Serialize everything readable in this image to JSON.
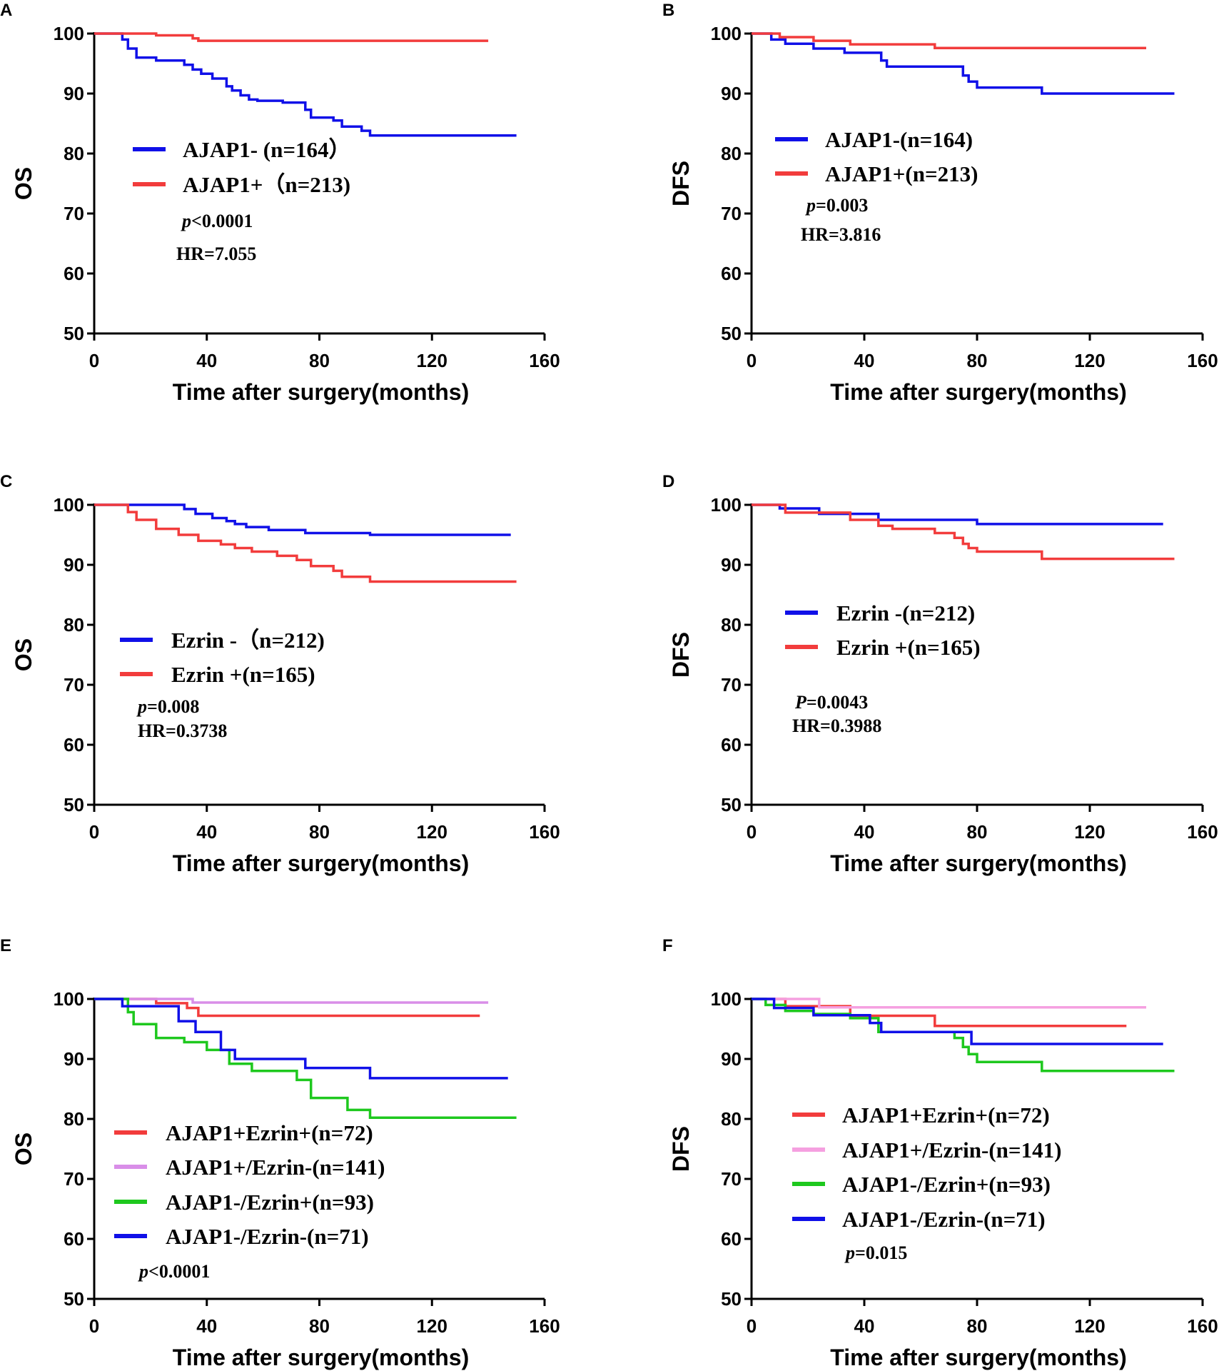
{
  "chart_data": [
    {
      "panel": "A",
      "type": "line",
      "ylabel": "OS",
      "xlabel": "Time after surgery(months)",
      "xlim": [
        0,
        160
      ],
      "ylim": [
        50,
        100
      ],
      "xticks": [
        "0",
        "40",
        "80",
        "120",
        "160"
      ],
      "yticks": [
        "50",
        "60",
        "70",
        "80",
        "90",
        "100"
      ],
      "series": [
        {
          "name": "AJAP1- (n=164）",
          "color": "#1010e8",
          "x": [
            0,
            10,
            10,
            12,
            12,
            15,
            15,
            22,
            22,
            32,
            32,
            35,
            35,
            38,
            38,
            42,
            42,
            47,
            47,
            49,
            49,
            52,
            52,
            55,
            55,
            58,
            58,
            67,
            67,
            75,
            75,
            77,
            77,
            85,
            85,
            88,
            88,
            95,
            95,
            98,
            98,
            150
          ],
          "y": [
            100,
            100,
            99,
            99,
            97.5,
            97.5,
            96,
            96,
            95.5,
            95.5,
            94.8,
            94.8,
            94,
            94,
            93.3,
            93.3,
            92.5,
            92.5,
            91.2,
            91.2,
            90.5,
            90.5,
            89.7,
            89.7,
            89,
            89,
            88.8,
            88.8,
            88.5,
            88.5,
            87.3,
            87.3,
            86,
            86,
            85.5,
            85.5,
            84.5,
            84.5,
            83.8,
            83.8,
            83,
            83
          ]
        },
        {
          "name": "AJAP1+（n=213)",
          "color": "#f23c3c",
          "x": [
            0,
            22,
            22,
            35,
            35,
            37,
            37,
            140
          ],
          "y": [
            100,
            100,
            99.7,
            99.7,
            99.2,
            99.2,
            98.8,
            98.8
          ]
        }
      ],
      "annotations": [
        "p<0.0001",
        "HR=7.055"
      ]
    },
    {
      "panel": "B",
      "type": "line",
      "ylabel": "DFS",
      "xlabel": "Time after surgery(months)",
      "xlim": [
        0,
        160
      ],
      "ylim": [
        50,
        100
      ],
      "xticks": [
        "0",
        "40",
        "80",
        "120",
        "160"
      ],
      "yticks": [
        "50",
        "60",
        "70",
        "80",
        "90",
        "100"
      ],
      "series": [
        {
          "name": "AJAP1-(n=164)",
          "color": "#1010e8",
          "x": [
            0,
            7,
            7,
            12,
            12,
            22,
            22,
            33,
            33,
            46,
            46,
            48,
            48,
            75,
            75,
            77,
            77,
            80,
            80,
            103,
            103,
            150
          ],
          "y": [
            100,
            100,
            99,
            99,
            98.3,
            98.3,
            97.5,
            97.5,
            96.8,
            96.8,
            95.5,
            95.5,
            94.5,
            94.5,
            93,
            93,
            92,
            92,
            91,
            91,
            90,
            90
          ]
        },
        {
          "name": "AJAP1+(n=213)",
          "color": "#f23c3c",
          "x": [
            0,
            10,
            10,
            22,
            22,
            35,
            35,
            65,
            65,
            140
          ],
          "y": [
            100,
            100,
            99.4,
            99.4,
            98.8,
            98.8,
            98.2,
            98.2,
            97.6,
            97.6
          ]
        }
      ],
      "annotations": [
        "p=0.003",
        "HR=3.816"
      ]
    },
    {
      "panel": "C",
      "type": "line",
      "ylabel": "OS",
      "xlabel": "Time after surgery(months)",
      "xlim": [
        0,
        160
      ],
      "ylim": [
        50,
        100
      ],
      "xticks": [
        "0",
        "40",
        "80",
        "120",
        "160"
      ],
      "yticks": [
        "50",
        "60",
        "70",
        "80",
        "90",
        "100"
      ],
      "series": [
        {
          "name": "Ezrin -（n=212)",
          "color": "#1010e8",
          "x": [
            0,
            32,
            32,
            36,
            36,
            42,
            42,
            47,
            47,
            50,
            50,
            54,
            54,
            62,
            62,
            75,
            75,
            98,
            98,
            148
          ],
          "y": [
            100,
            100,
            99.3,
            99.3,
            98.5,
            98.5,
            97.8,
            97.8,
            97.3,
            97.3,
            96.8,
            96.8,
            96.3,
            96.3,
            95.8,
            95.8,
            95.3,
            95.3,
            95,
            95
          ]
        },
        {
          "name": "Ezrin +(n=165)",
          "color": "#f23c3c",
          "x": [
            0,
            12,
            12,
            15,
            15,
            22,
            22,
            30,
            30,
            37,
            37,
            45,
            45,
            50,
            50,
            56,
            56,
            65,
            65,
            72,
            72,
            77,
            77,
            85,
            85,
            88,
            88,
            98,
            98,
            150
          ],
          "y": [
            100,
            100,
            98.8,
            98.8,
            97.5,
            97.5,
            96,
            96,
            95,
            95,
            94,
            94,
            93.4,
            93.4,
            92.8,
            92.8,
            92.2,
            92.2,
            91.5,
            91.5,
            90.8,
            90.8,
            89.8,
            89.8,
            89,
            89,
            88,
            88,
            87.2,
            87.2
          ]
        }
      ],
      "annotations": [
        "p=0.008",
        "HR=0.3738"
      ]
    },
    {
      "panel": "D",
      "type": "line",
      "ylabel": "DFS",
      "xlabel": "Time after surgery(months)",
      "xlim": [
        0,
        160
      ],
      "ylim": [
        50,
        100
      ],
      "xticks": [
        "0",
        "40",
        "80",
        "120",
        "160"
      ],
      "yticks": [
        "50",
        "60",
        "70",
        "80",
        "90",
        "100"
      ],
      "series": [
        {
          "name": "Ezrin -(n=212)",
          "color": "#1010e8",
          "x": [
            0,
            10,
            10,
            24,
            24,
            45,
            45,
            80,
            80,
            146
          ],
          "y": [
            100,
            100,
            99.4,
            99.4,
            98.5,
            98.5,
            97.5,
            97.5,
            96.8,
            96.8
          ]
        },
        {
          "name": "Ezrin +(n=165)",
          "color": "#f23c3c",
          "x": [
            0,
            12,
            12,
            35,
            35,
            45,
            45,
            50,
            50,
            65,
            65,
            72,
            72,
            75,
            75,
            77,
            77,
            80,
            80,
            103,
            103,
            150
          ],
          "y": [
            100,
            100,
            98.7,
            98.7,
            97.5,
            97.5,
            96.5,
            96.5,
            96,
            96,
            95.3,
            95.3,
            94.5,
            94.5,
            93.5,
            93.5,
            92.8,
            92.8,
            92.2,
            92.2,
            91,
            91
          ]
        }
      ],
      "annotations": [
        "P=0.0043",
        "HR=0.3988"
      ]
    },
    {
      "panel": "E",
      "type": "line",
      "ylabel": "OS",
      "xlabel": "Time after surgery(months)",
      "xlim": [
        0,
        160
      ],
      "ylim": [
        50,
        100
      ],
      "xticks": [
        "0",
        "40",
        "80",
        "120",
        "160"
      ],
      "yticks": [
        "50",
        "60",
        "70",
        "80",
        "90",
        "100"
      ],
      "series": [
        {
          "name": "AJAP1+Ezrin+(n=72)",
          "color": "#f23c3c",
          "x": [
            0,
            22,
            22,
            33,
            33,
            37,
            37,
            137
          ],
          "y": [
            100,
            100,
            99.3,
            99.3,
            98.5,
            98.5,
            97.2,
            97.2
          ]
        },
        {
          "name": "AJAP1+/Ezrin-(n=141)",
          "color": "#d98ee8",
          "x": [
            0,
            35,
            35,
            140
          ],
          "y": [
            100,
            100,
            99.4,
            99.4
          ]
        },
        {
          "name": "AJAP1-/Ezrin+(n=93)",
          "color": "#1ec81e",
          "x": [
            0,
            12,
            12,
            14,
            14,
            22,
            22,
            32,
            32,
            40,
            40,
            48,
            48,
            56,
            56,
            72,
            72,
            77,
            77,
            90,
            90,
            98,
            98,
            150
          ],
          "y": [
            100,
            100,
            97.8,
            97.8,
            95.8,
            95.8,
            93.5,
            93.5,
            92.8,
            92.8,
            91.5,
            91.5,
            89.2,
            89.2,
            88,
            88,
            86.5,
            86.5,
            83.5,
            83.5,
            81.5,
            81.5,
            80.2,
            80.2
          ]
        },
        {
          "name": "AJAP1-/Ezrin-(n=71)",
          "color": "#1010e8",
          "x": [
            0,
            10,
            10,
            30,
            30,
            36,
            36,
            45,
            45,
            50,
            50,
            75,
            75,
            98,
            98,
            147
          ],
          "y": [
            100,
            100,
            98.8,
            98.8,
            96.3,
            96.3,
            94.5,
            94.5,
            91.5,
            91.5,
            90,
            90,
            88.5,
            88.5,
            86.8,
            86.8
          ]
        }
      ],
      "annotations": [
        "p<0.0001"
      ]
    },
    {
      "panel": "F",
      "type": "line",
      "ylabel": "DFS",
      "xlabel": "Time after surgery(months)",
      "xlim": [
        0,
        160
      ],
      "ylim": [
        50,
        100
      ],
      "xticks": [
        "0",
        "40",
        "80",
        "120",
        "160"
      ],
      "yticks": [
        "50",
        "60",
        "70",
        "80",
        "90",
        "100"
      ],
      "series": [
        {
          "name": "AJAP1+Ezrin+(n=72)",
          "color": "#f23c3c",
          "x": [
            0,
            12,
            12,
            35,
            35,
            65,
            65,
            133
          ],
          "y": [
            100,
            100,
            98.8,
            98.8,
            97.2,
            97.2,
            95.5,
            95.5
          ]
        },
        {
          "name": "AJAP1+/Ezrin-(n=141)",
          "color": "#f5a0e0",
          "x": [
            0,
            24,
            24,
            140
          ],
          "y": [
            100,
            100,
            98.6,
            98.6
          ]
        },
        {
          "name": "AJAP1-/Ezrin+(n=93)",
          "color": "#1ec81e",
          "x": [
            0,
            5,
            5,
            12,
            12,
            22,
            22,
            35,
            35,
            45,
            45,
            72,
            72,
            75,
            75,
            77,
            77,
            80,
            80,
            103,
            103,
            150
          ],
          "y": [
            100,
            100,
            99,
            99,
            98,
            98,
            97.5,
            97.5,
            96.8,
            96.8,
            94.5,
            94.5,
            93.5,
            93.5,
            92,
            92,
            90.8,
            90.8,
            89.5,
            89.5,
            88,
            88
          ]
        },
        {
          "name": "AJAP1-/Ezrin-(n=71)",
          "color": "#1010e8",
          "x": [
            0,
            8,
            8,
            22,
            22,
            42,
            42,
            46,
            46,
            78,
            78,
            146
          ],
          "y": [
            100,
            100,
            98.5,
            98.5,
            97.3,
            97.3,
            96,
            96,
            94.5,
            94.5,
            92.5,
            92.5
          ]
        }
      ],
      "annotations": [
        "p=0.015"
      ]
    }
  ]
}
